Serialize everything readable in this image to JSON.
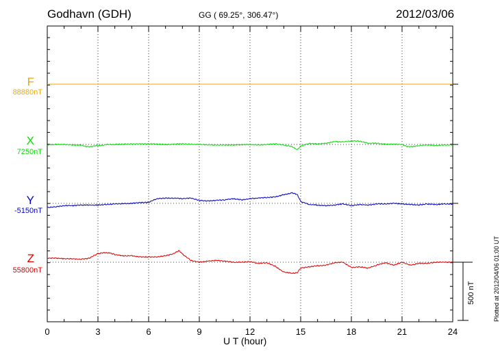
{
  "header": {
    "station": "Godhavn (GDH)",
    "coords": "GG ( 69.25°, 306.47°)",
    "date": "2012/03/06"
  },
  "plotted_note": "Plotted at 2012/04/06 01:00 UT",
  "scale_bar": {
    "label": "500 nT",
    "value_nT": 500
  },
  "colors": {
    "F": "#f0a800",
    "X": "#00e000",
    "Y": "#0000cc",
    "Z": "#e00000"
  },
  "chart_data": {
    "type": "line",
    "title": "",
    "xlabel": "U T (hour)",
    "ylabel": "",
    "xlim": [
      0,
      24
    ],
    "x_ticks": [
      "0",
      "3",
      "6",
      "9",
      "12",
      "15",
      "18",
      "21",
      "24"
    ],
    "grid": true,
    "series": [
      {
        "name": "F",
        "baseline_label": "88880nT",
        "x": [
          0,
          24
        ],
        "y": [
          0,
          0
        ]
      },
      {
        "name": "X",
        "baseline_label": "7250nT",
        "x": [
          0,
          0.5,
          1,
          1.5,
          2,
          2.3,
          2.6,
          2.9,
          3.2,
          3.5,
          4,
          5,
          6,
          7,
          8,
          9,
          10,
          11,
          12,
          12.5,
          13,
          13.5,
          14,
          14.5,
          14.8,
          15,
          15.5,
          16,
          16.5,
          17,
          17.5,
          18,
          18.5,
          19,
          19.5,
          20,
          20.5,
          21,
          21.3,
          21.6,
          22,
          22.5,
          23,
          23.5,
          24
        ],
        "y": [
          -5,
          0,
          0,
          -5,
          -5,
          -18,
          -18,
          -10,
          -10,
          0,
          0,
          5,
          5,
          0,
          5,
          0,
          -5,
          -5,
          0,
          -5,
          0,
          5,
          -5,
          -20,
          -45,
          -15,
          8,
          5,
          10,
          25,
          22,
          30,
          28,
          10,
          10,
          3,
          3,
          0,
          -18,
          -18,
          -10,
          -5,
          -10,
          -5,
          -5
        ]
      },
      {
        "name": "Y",
        "baseline_label": "-5150nT",
        "x": [
          0,
          0.5,
          1,
          1.5,
          2,
          2.5,
          3,
          4,
          5,
          6,
          6.5,
          7,
          7.5,
          8,
          8.5,
          9,
          9.5,
          10,
          10.5,
          11,
          11.5,
          12,
          12.5,
          13,
          13.5,
          14,
          14.5,
          14.8,
          15,
          15.5,
          16,
          16.5,
          17,
          17.5,
          18,
          18.5,
          19,
          19.5,
          20,
          20.5,
          21,
          21.5,
          22,
          22.5,
          23,
          23.5,
          24
        ],
        "y": [
          -35,
          -30,
          -20,
          -20,
          -15,
          -15,
          -15,
          -5,
          0,
          10,
          40,
          45,
          45,
          40,
          45,
          25,
          20,
          25,
          30,
          40,
          30,
          40,
          45,
          50,
          55,
          75,
          90,
          75,
          15,
          -10,
          -15,
          -20,
          -15,
          -5,
          -20,
          -10,
          -15,
          -5,
          -5,
          0,
          -5,
          -10,
          -15,
          -5,
          -10,
          -5,
          -5
        ]
      },
      {
        "name": "Z",
        "baseline_label": "55800nT",
        "x": [
          0,
          0.5,
          1,
          1.5,
          2,
          2.5,
          2.8,
          3,
          3.3,
          3.7,
          4,
          4.5,
          5,
          5.5,
          6,
          6.5,
          7,
          7.5,
          7.8,
          8,
          8.5,
          9,
          9.5,
          10,
          10.5,
          11,
          11.5,
          12,
          12.5,
          13,
          13.5,
          14,
          14.5,
          14.8,
          15,
          15.5,
          16,
          16.5,
          17,
          17.5,
          18,
          18.5,
          19,
          19.5,
          20,
          20.5,
          21,
          21.5,
          22,
          22.5,
          23,
          23.5,
          24
        ],
        "y": [
          35,
          35,
          30,
          30,
          25,
          35,
          60,
          75,
          80,
          80,
          65,
          55,
          55,
          45,
          45,
          45,
          55,
          75,
          100,
          70,
          15,
          0,
          10,
          15,
          10,
          0,
          0,
          5,
          -10,
          -5,
          -35,
          -85,
          -95,
          -90,
          -50,
          -40,
          -30,
          -25,
          -5,
          0,
          -45,
          -40,
          -50,
          -25,
          -5,
          -25,
          0,
          -25,
          -10,
          -10,
          0,
          0,
          0
        ]
      }
    ]
  }
}
